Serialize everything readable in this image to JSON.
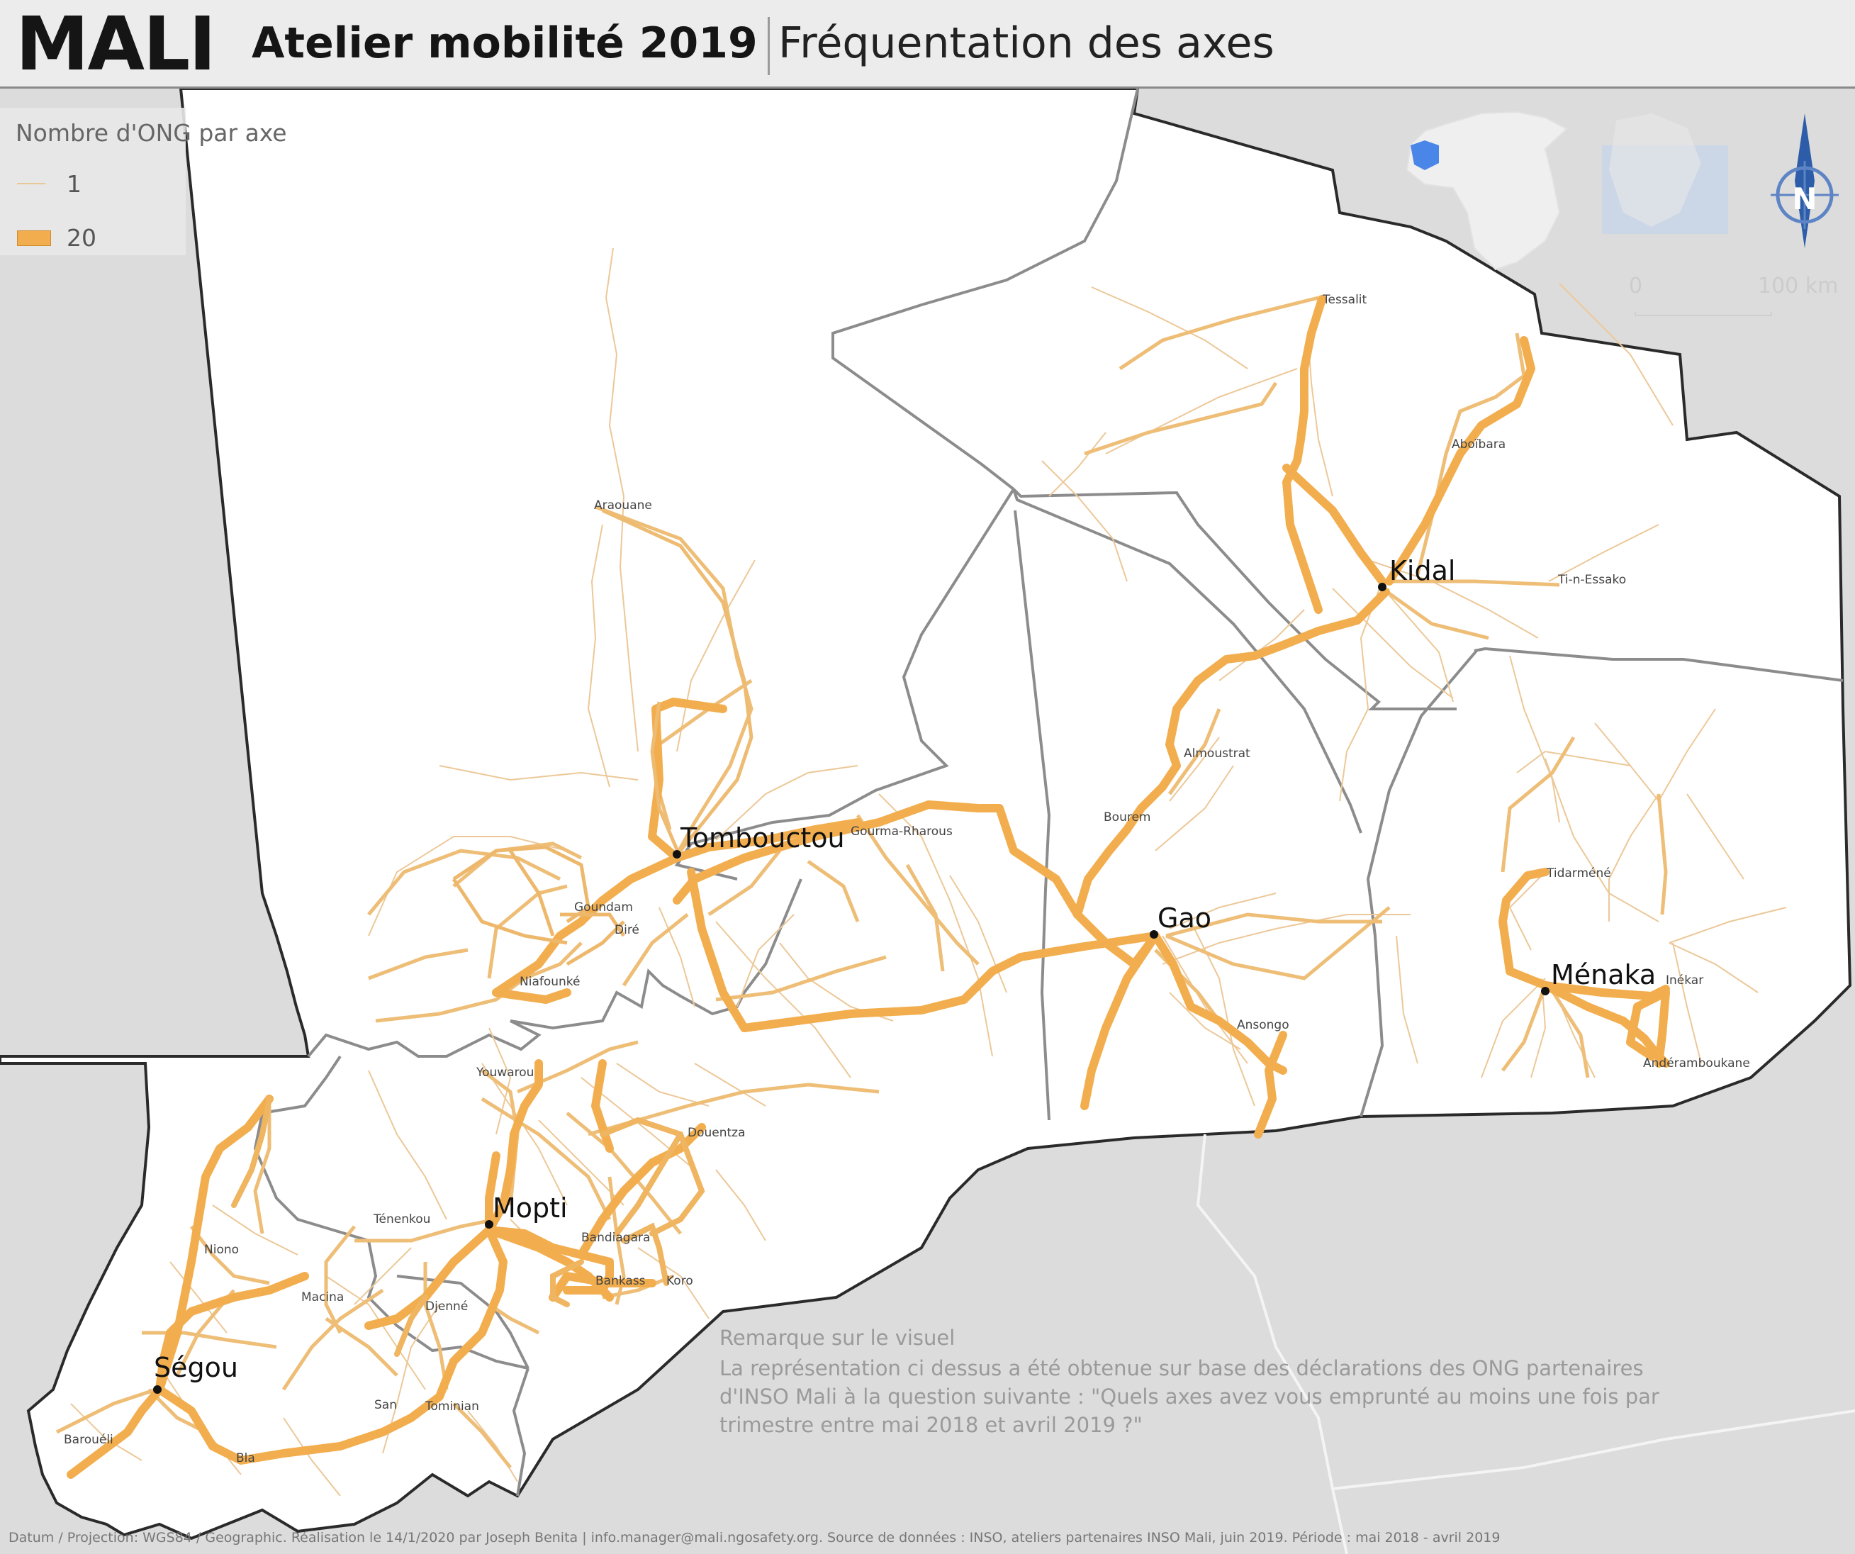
{
  "header": {
    "country": "MALI",
    "subtitle": "Atelier mobilité 2019",
    "theme": "Fréquentation des axes"
  },
  "legend": {
    "title": "Nombre d'ONG par axe",
    "min_label": "1",
    "max_label": "20",
    "axis_color": "#f2ae4e",
    "axis_outline_color": "#d08a2c"
  },
  "scale": {
    "zero": "0",
    "max": "100 km"
  },
  "north_arrow": {
    "label": "N",
    "icon": "north-arrow-icon"
  },
  "major_cities": [
    "Tombouctou",
    "Kidal",
    "Gao",
    "Ménaka",
    "Mopti",
    "Ségou"
  ],
  "minor_places": [
    "Tessalit",
    "Aboïbara",
    "Araouane",
    "Ti-n-Essako",
    "Goundam",
    "Diré",
    "Gourma-Rharous",
    "Almoustrat",
    "Bourem",
    "Tidarméné",
    "Inékar",
    "Ansongo",
    "Andéramboukane",
    "Niafounké",
    "Youwarou",
    "Douentza",
    "Ténenkou",
    "Bandiagara",
    "Bankass",
    "Koro",
    "Niono",
    "Macina",
    "Djenné",
    "San",
    "Tominian",
    "Barouéli",
    "Bla"
  ],
  "note": {
    "title": "Remarque sur le visuel",
    "body": "La représentation ci dessus a été obtenue sur base des déclarations des ONG partenaires d'INSO Mali à la question suivante : \"Quels axes avez vous emprunté au moins une fois par trimestre entre mai 2018 et avril 2019 ?\""
  },
  "footer": "Datum / Projection: WGS84 / Geographic. Réalisation le 14/1/2020 par Joseph Benita | info.manager@mali.ngosafety.org. Source de données : INSO, ateliers partenaires INSO Mali, juin 2019. Période : mai 2018 - avril 2019"
}
